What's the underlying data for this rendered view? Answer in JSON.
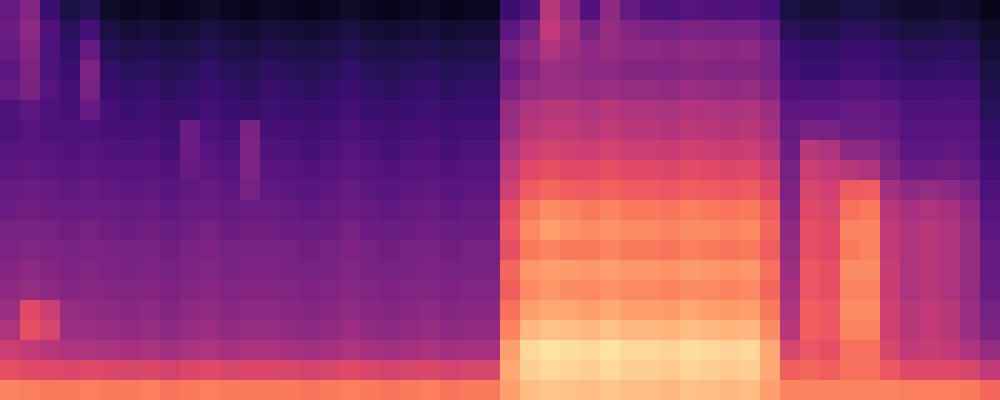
{
  "chart_data": {
    "type": "heatmap",
    "color": "magma",
    "tick_labels": false,
    "color_range": [
      0,
      100
    ],
    "cells": [
      [
        30,
        38,
        20,
        12,
        15,
        8,
        6,
        7,
        5,
        6,
        8,
        6,
        5,
        7,
        6,
        5,
        6,
        8,
        6,
        5,
        6,
        7,
        5,
        6,
        6,
        20,
        25,
        50,
        40,
        25,
        40,
        30,
        25,
        24,
        26,
        25,
        24,
        25,
        22,
        12,
        10,
        10,
        12,
        12,
        10,
        8,
        8,
        9,
        8,
        5
      ],
      [
        32,
        40,
        25,
        16,
        22,
        12,
        10,
        11,
        9,
        10,
        12,
        10,
        9,
        11,
        10,
        9,
        10,
        12,
        10,
        9,
        10,
        11,
        9,
        10,
        10,
        28,
        35,
        52,
        45,
        35,
        42,
        38,
        35,
        34,
        36,
        35,
        34,
        35,
        30,
        16,
        14,
        14,
        16,
        16,
        14,
        12,
        12,
        13,
        12,
        8
      ],
      [
        30,
        38,
        24,
        18,
        30,
        15,
        13,
        14,
        12,
        13,
        15,
        13,
        12,
        14,
        13,
        12,
        13,
        15,
        13,
        12,
        13,
        14,
        12,
        13,
        13,
        34,
        40,
        48,
        44,
        40,
        42,
        40,
        40,
        39,
        41,
        40,
        39,
        40,
        35,
        20,
        18,
        18,
        20,
        20,
        18,
        16,
        16,
        17,
        16,
        10
      ],
      [
        28,
        36,
        24,
        20,
        36,
        18,
        16,
        17,
        15,
        16,
        18,
        16,
        15,
        17,
        16,
        15,
        16,
        18,
        16,
        15,
        16,
        17,
        15,
        16,
        16,
        32,
        38,
        44,
        42,
        40,
        40,
        38,
        38,
        37,
        39,
        38,
        37,
        38,
        34,
        22,
        20,
        20,
        22,
        22,
        20,
        18,
        18,
        19,
        18,
        12
      ],
      [
        30,
        35,
        26,
        22,
        34,
        20,
        18,
        19,
        17,
        18,
        20,
        18,
        17,
        19,
        18,
        17,
        18,
        20,
        18,
        17,
        18,
        19,
        17,
        18,
        18,
        36,
        42,
        44,
        44,
        42,
        44,
        42,
        42,
        41,
        43,
        42,
        41,
        42,
        38,
        25,
        24,
        24,
        26,
        26,
        24,
        22,
        22,
        23,
        22,
        14
      ],
      [
        24,
        28,
        24,
        22,
        30,
        22,
        20,
        21,
        19,
        20,
        22,
        20,
        19,
        21,
        20,
        19,
        20,
        22,
        20,
        19,
        20,
        21,
        19,
        20,
        20,
        42,
        48,
        50,
        50,
        48,
        50,
        48,
        48,
        47,
        49,
        48,
        47,
        48,
        44,
        28,
        28,
        28,
        30,
        30,
        28,
        24,
        24,
        25,
        24,
        16
      ],
      [
        24,
        26,
        24,
        24,
        24,
        23,
        22,
        23,
        21,
        32,
        24,
        22,
        35,
        23,
        22,
        21,
        22,
        24,
        22,
        21,
        22,
        23,
        21,
        22,
        22,
        44,
        50,
        52,
        52,
        50,
        52,
        50,
        50,
        49,
        51,
        50,
        49,
        50,
        46,
        30,
        35,
        34,
        32,
        32,
        30,
        26,
        26,
        27,
        26,
        18
      ],
      [
        26,
        27,
        26,
        25,
        26,
        25,
        24,
        25,
        23,
        32,
        26,
        24,
        36,
        25,
        24,
        23,
        24,
        26,
        24,
        23,
        24,
        25,
        23,
        24,
        24,
        48,
        55,
        57,
        56,
        55,
        57,
        55,
        55,
        54,
        56,
        55,
        54,
        55,
        50,
        32,
        50,
        48,
        40,
        40,
        34,
        28,
        28,
        29,
        28,
        20
      ],
      [
        28,
        29,
        28,
        27,
        28,
        27,
        26,
        27,
        25,
        30,
        28,
        26,
        36,
        27,
        26,
        25,
        26,
        28,
        26,
        25,
        26,
        27,
        25,
        26,
        26,
        52,
        60,
        62,
        60,
        60,
        62,
        60,
        60,
        59,
        61,
        60,
        59,
        60,
        55,
        34,
        55,
        52,
        50,
        48,
        38,
        32,
        32,
        33,
        30,
        22
      ],
      [
        30,
        31,
        30,
        29,
        30,
        29,
        28,
        29,
        27,
        29,
        30,
        28,
        34,
        29,
        28,
        27,
        28,
        30,
        28,
        27,
        28,
        29,
        27,
        28,
        28,
        56,
        65,
        68,
        66,
        65,
        67,
        65,
        65,
        64,
        66,
        65,
        64,
        65,
        60,
        36,
        58,
        56,
        65,
        66,
        45,
        40,
        42,
        40,
        36,
        24
      ],
      [
        32,
        33,
        32,
        31,
        32,
        31,
        30,
        31,
        29,
        31,
        32,
        30,
        31,
        31,
        30,
        29,
        30,
        32,
        30,
        29,
        30,
        31,
        29,
        30,
        30,
        62,
        72,
        76,
        74,
        72,
        74,
        72,
        72,
        71,
        73,
        72,
        71,
        72,
        66,
        38,
        60,
        58,
        70,
        72,
        50,
        46,
        48,
        46,
        40,
        26
      ],
      [
        34,
        35,
        34,
        33,
        34,
        33,
        32,
        33,
        31,
        33,
        34,
        32,
        33,
        33,
        32,
        31,
        32,
        34,
        32,
        31,
        32,
        33,
        31,
        32,
        32,
        64,
        75,
        80,
        77,
        75,
        77,
        75,
        75,
        74,
        76,
        75,
        74,
        75,
        68,
        40,
        62,
        60,
        74,
        74,
        52,
        48,
        50,
        48,
        42,
        28
      ],
      [
        36,
        37,
        36,
        35,
        36,
        35,
        34,
        35,
        33,
        35,
        36,
        34,
        35,
        35,
        34,
        33,
        34,
        36,
        34,
        33,
        34,
        35,
        33,
        34,
        34,
        62,
        72,
        74,
        72,
        72,
        74,
        72,
        72,
        71,
        73,
        72,
        71,
        72,
        66,
        42,
        62,
        60,
        72,
        74,
        52,
        48,
        50,
        48,
        42,
        30
      ],
      [
        38,
        40,
        38,
        36,
        37,
        36,
        35,
        36,
        34,
        36,
        37,
        35,
        36,
        36,
        35,
        34,
        35,
        37,
        35,
        34,
        35,
        36,
        34,
        35,
        35,
        68,
        78,
        80,
        79,
        78,
        80,
        78,
        78,
        77,
        79,
        78,
        77,
        78,
        70,
        44,
        64,
        62,
        76,
        76,
        54,
        48,
        50,
        48,
        42,
        30
      ],
      [
        40,
        42,
        40,
        38,
        39,
        38,
        37,
        38,
        36,
        38,
        39,
        37,
        38,
        38,
        37,
        36,
        37,
        39,
        37,
        36,
        37,
        38,
        36,
        37,
        37,
        66,
        75,
        78,
        76,
        75,
        77,
        75,
        75,
        74,
        76,
        75,
        74,
        75,
        68,
        46,
        64,
        62,
        74,
        74,
        54,
        48,
        50,
        48,
        42,
        32
      ],
      [
        44,
        60,
        55,
        42,
        41,
        40,
        39,
        40,
        38,
        40,
        41,
        39,
        40,
        40,
        39,
        38,
        39,
        41,
        39,
        38,
        39,
        40,
        38,
        39,
        39,
        70,
        80,
        82,
        81,
        80,
        82,
        80,
        80,
        79,
        81,
        80,
        79,
        80,
        72,
        48,
        66,
        64,
        76,
        76,
        56,
        50,
        52,
        50,
        44,
        34
      ],
      [
        48,
        62,
        58,
        44,
        43,
        42,
        41,
        42,
        40,
        42,
        43,
        41,
        42,
        42,
        41,
        40,
        41,
        43,
        41,
        40,
        41,
        42,
        40,
        41,
        41,
        74,
        85,
        87,
        86,
        85,
        87,
        85,
        85,
        84,
        86,
        85,
        84,
        85,
        76,
        50,
        66,
        64,
        74,
        74,
        56,
        50,
        52,
        50,
        44,
        36
      ],
      [
        55,
        52,
        50,
        48,
        48,
        47,
        46,
        47,
        45,
        47,
        48,
        46,
        47,
        47,
        46,
        45,
        46,
        48,
        46,
        45,
        46,
        47,
        45,
        46,
        46,
        80,
        92,
        94,
        93,
        92,
        94,
        92,
        92,
        91,
        93,
        92,
        91,
        92,
        82,
        58,
        64,
        62,
        70,
        70,
        58,
        52,
        54,
        52,
        48,
        42
      ],
      [
        62,
        60,
        60,
        59,
        60,
        59,
        58,
        59,
        57,
        59,
        60,
        58,
        59,
        59,
        58,
        57,
        58,
        60,
        58,
        57,
        58,
        59,
        57,
        58,
        58,
        82,
        90,
        92,
        91,
        90,
        92,
        90,
        90,
        89,
        91,
        90,
        89,
        90,
        82,
        66,
        68,
        66,
        70,
        70,
        64,
        60,
        60,
        60,
        58,
        52
      ],
      [
        74,
        73,
        72,
        72,
        73,
        72,
        72,
        73,
        71,
        72,
        73,
        72,
        72,
        72,
        72,
        71,
        72,
        73,
        72,
        71,
        72,
        73,
        71,
        72,
        72,
        80,
        86,
        88,
        87,
        86,
        88,
        86,
        86,
        85,
        87,
        86,
        85,
        86,
        80,
        74,
        74,
        74,
        74,
        74,
        74,
        73,
        73,
        73,
        72,
        68
      ]
    ]
  }
}
